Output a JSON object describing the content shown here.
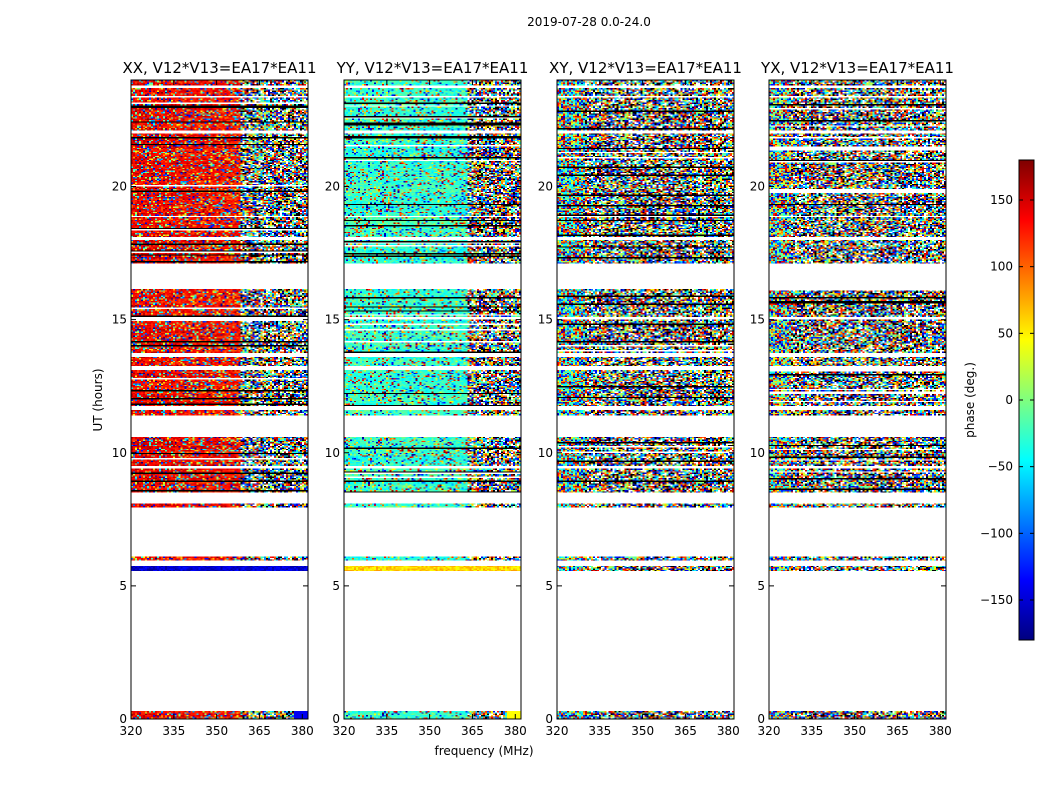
{
  "chart_data": {
    "type": "heatmap",
    "suptitle": "2019-07-28 0.0-24.0",
    "xlabel": "frequency (MHz)",
    "ylabel": "UT (hours)",
    "xlim": [
      320,
      382
    ],
    "ylim": [
      0,
      24
    ],
    "xticks": [
      320,
      335,
      350,
      365,
      380
    ],
    "yticks": [
      0,
      5,
      10,
      15,
      20
    ],
    "colorbar": {
      "label": "phase (deg.)",
      "colormap": "jet",
      "range": [
        -180,
        180
      ],
      "ticks": [
        150,
        100,
        50,
        0,
        -50,
        -100,
        -150
      ],
      "tick_labels": [
        "150",
        "100",
        "50",
        "0",
        "−50",
        "−100",
        "−150"
      ],
      "colors": [
        "#00007f",
        "#0000ff",
        "#007fff",
        "#00ffff",
        "#7fff7f",
        "#ffff00",
        "#ff7f00",
        "#ff0000",
        "#7f0000"
      ]
    },
    "data_time_blocks_hours": [
      [
        0.0,
        0.3
      ],
      [
        5.55,
        5.75
      ],
      [
        5.95,
        6.1
      ],
      [
        7.95,
        8.1
      ],
      [
        8.5,
        9.4
      ],
      [
        9.5,
        10.6
      ],
      [
        11.4,
        11.6
      ],
      [
        11.75,
        13.1
      ],
      [
        13.25,
        13.6
      ],
      [
        13.75,
        15.0
      ],
      [
        15.1,
        16.1
      ],
      [
        17.1,
        18.0
      ],
      [
        18.1,
        18.8
      ],
      [
        18.95,
        22.0
      ],
      [
        22.1,
        23.3
      ],
      [
        23.45,
        23.7
      ],
      [
        23.8,
        24.0
      ]
    ],
    "panels": [
      {
        "title": "XX, V12*V13=EA17*EA11",
        "coherence_phase_deg": 140,
        "coherent_until_mhz": 358,
        "noise_level": 0.35,
        "drift_deg_per_mhz": 0.3,
        "overrides": [
          {
            "t": [
              5.55,
              5.75
            ],
            "phase_deg": -150
          },
          {
            "t": [
              0.0,
              0.3
            ],
            "right_edge_phase_deg": -140
          }
        ]
      },
      {
        "title": "YY, V12*V13=EA17*EA11",
        "coherence_phase_deg": -25,
        "coherent_until_mhz": 363,
        "noise_level": 0.3,
        "drift_deg_per_mhz": 0.1,
        "overrides": [
          {
            "t": [
              5.55,
              5.75
            ],
            "phase_deg": 60
          },
          {
            "t": [
              0.0,
              0.3
            ],
            "right_edge_phase_deg": 45
          }
        ]
      },
      {
        "title": "XY, V12*V13=EA17*EA11",
        "coherence_phase_deg": -40,
        "coherent_until_mhz": 330,
        "noise_level": 0.85,
        "drift_deg_per_mhz": 0.0,
        "overrides": []
      },
      {
        "title": "YX, V12*V13=EA17*EA11",
        "coherence_phase_deg": -10,
        "coherent_until_mhz": 328,
        "noise_level": 0.9,
        "drift_deg_per_mhz": 0.0,
        "overrides": []
      }
    ]
  }
}
